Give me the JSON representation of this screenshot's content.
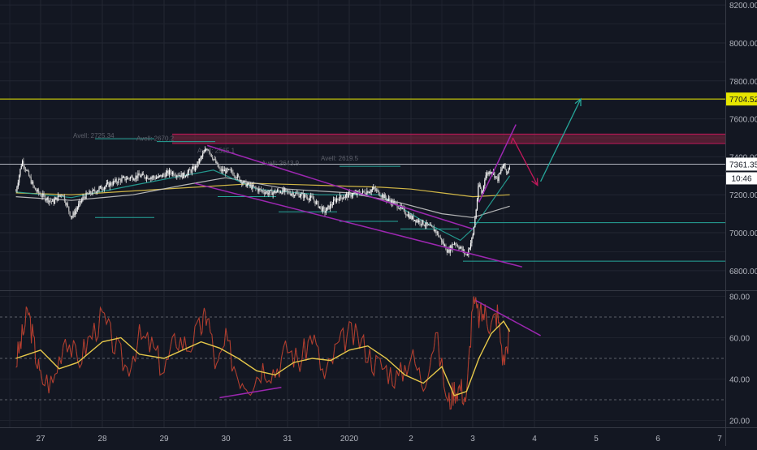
{
  "chart_data": [
    {
      "type": "candlestick",
      "title": "",
      "x_tick_labels": [
        "27",
        "28",
        "29",
        "30",
        "31",
        "2020",
        "2",
        "3",
        "4",
        "5",
        "6",
        "7"
      ],
      "y_tick_labels": [
        "6800.00",
        "7000.00",
        "7200.00",
        "7400.00",
        "7600.00",
        "7800.00",
        "8000.00",
        "8200.00"
      ],
      "ylim": [
        6660,
        8220
      ],
      "grid": true,
      "price_axis_labels": {
        "key_level": "7704.52",
        "last_price": "7361.35",
        "countdown": "10:46"
      },
      "price_path": {
        "x": [
          26.6,
          26.7,
          26.9,
          27.0,
          27.2,
          27.35,
          27.5,
          27.7,
          28.0,
          28.3,
          28.6,
          28.9,
          29.1,
          29.3,
          29.5,
          29.7,
          29.9,
          30.1,
          30.3,
          30.5,
          30.7,
          30.9,
          31.2,
          31.4,
          31.6,
          31.8,
          32.0,
          32.2,
          32.4,
          32.6,
          32.8,
          33.0,
          33.2,
          33.4,
          33.6,
          33.7,
          33.8,
          33.9,
          34.0,
          34.05,
          34.1,
          34.15,
          34.2,
          34.3,
          34.4,
          34.5,
          34.55,
          34.6
        ],
        "close": [
          7220,
          7380,
          7230,
          7200,
          7160,
          7210,
          7080,
          7190,
          7240,
          7280,
          7300,
          7290,
          7320,
          7300,
          7340,
          7450,
          7330,
          7320,
          7260,
          7230,
          7210,
          7220,
          7200,
          7180,
          7110,
          7180,
          7200,
          7210,
          7230,
          7180,
          7140,
          7080,
          7050,
          7010,
          6900,
          6950,
          6920,
          6880,
          6980,
          7110,
          7260,
          7200,
          7300,
          7330,
          7280,
          7360,
          7310,
          7361
        ]
      },
      "moving_averages": [
        {
          "color": "#e6c84a",
          "x": [
            26.6,
            27.5,
            28.5,
            29.5,
            30.5,
            31.5,
            32.5,
            33.0,
            33.5,
            34.0,
            34.6
          ],
          "values": [
            7210,
            7200,
            7220,
            7240,
            7260,
            7250,
            7240,
            7230,
            7210,
            7190,
            7200
          ]
        },
        {
          "color": "#c8c8c8",
          "x": [
            26.6,
            27.5,
            28.5,
            29.3,
            30.0,
            31.0,
            32.0,
            32.8,
            33.5,
            34.0,
            34.6
          ],
          "values": [
            7190,
            7170,
            7200,
            7250,
            7290,
            7230,
            7210,
            7160,
            7100,
            7080,
            7140
          ]
        },
        {
          "color": "#26a69a",
          "x": [
            26.6,
            27.5,
            28.5,
            29.3,
            29.8,
            30.5,
            31.5,
            32.5,
            33.2,
            33.8,
            34.0,
            34.6
          ],
          "values": [
            7215,
            7185,
            7250,
            7300,
            7330,
            7230,
            7200,
            7200,
            7060,
            6960,
            7020,
            7300
          ]
        }
      ],
      "horizontal_levels": [
        {
          "price": 7704.52,
          "color": "#e6e600"
        },
        {
          "price": 7361.35,
          "color": "#b2b5be"
        },
        {
          "price": 7053,
          "color": "#26a69a"
        },
        {
          "price": 6850,
          "color": "#26a69a"
        }
      ],
      "shaded_zone": {
        "from": 7470,
        "to": 7520,
        "color": "#9b2747"
      },
      "annotation_labels": [
        "Avell: 2725.34",
        "Avell: 2670.2",
        "Avell: 2619.5",
        "Avell: 2643.9",
        "Avell: 2565.1"
      ],
      "drawings": [
        {
          "kind": "trendline",
          "color": "#9c27b0",
          "from": [
            29.7,
            7460
          ],
          "to": [
            34.0,
            7020
          ]
        },
        {
          "kind": "trendline",
          "color": "#9c27b0",
          "from": [
            29.5,
            7260
          ],
          "to": [
            34.8,
            6820
          ]
        },
        {
          "kind": "trendline",
          "color": "#9c27b0",
          "from": [
            34.1,
            7160
          ],
          "to": [
            34.7,
            7570
          ]
        },
        {
          "kind": "arrow",
          "color": "#c2185b",
          "from": [
            34.65,
            7500
          ],
          "to": [
            35.05,
            7250
          ]
        },
        {
          "kind": "arrow",
          "color": "#26a69a",
          "from": [
            35.1,
            7270
          ],
          "to": [
            35.75,
            7705
          ]
        }
      ]
    },
    {
      "type": "line",
      "title": "",
      "y_tick_labels": [
        "20.00",
        "40.00",
        "60.00",
        "80.00"
      ],
      "ylim": [
        18,
        82
      ],
      "reference_levels": [
        30,
        50,
        70
      ],
      "series": [
        {
          "color": "#d32f2f",
          "x": [
            26.6,
            26.7,
            26.8,
            26.9,
            27.0,
            27.2,
            27.4,
            27.6,
            27.8,
            28.0,
            28.2,
            28.4,
            28.6,
            28.8,
            29.0,
            29.2,
            29.4,
            29.6,
            29.7,
            29.85,
            30.0,
            30.2,
            30.4,
            30.6,
            30.8,
            31.0,
            31.2,
            31.4,
            31.6,
            31.8,
            32.0,
            32.2,
            32.4,
            32.6,
            32.8,
            33.0,
            33.2,
            33.4,
            33.6,
            33.7,
            33.8,
            33.9,
            34.0,
            34.1,
            34.2,
            34.3,
            34.4,
            34.5,
            34.6
          ],
          "values": [
            48,
            60,
            73,
            55,
            40,
            38,
            62,
            48,
            60,
            70,
            56,
            45,
            60,
            56,
            44,
            60,
            56,
            65,
            72,
            44,
            58,
            42,
            38,
            46,
            44,
            55,
            48,
            62,
            40,
            55,
            62,
            58,
            48,
            45,
            40,
            52,
            38,
            62,
            28,
            35,
            36,
            30,
            78,
            70,
            72,
            66,
            72,
            48,
            64
          ]
        },
        {
          "color": "#e6c84a",
          "x": [
            26.6,
            26.8,
            27.0,
            27.3,
            27.6,
            28.0,
            28.3,
            28.6,
            29.0,
            29.3,
            29.6,
            29.9,
            30.2,
            30.5,
            30.8,
            31.1,
            31.4,
            31.7,
            32.0,
            32.3,
            32.6,
            32.9,
            33.2,
            33.5,
            33.7,
            33.9,
            34.1,
            34.3,
            34.5,
            34.6
          ],
          "values": [
            50,
            52,
            54,
            45,
            48,
            58,
            60,
            52,
            50,
            54,
            58,
            55,
            50,
            44,
            42,
            48,
            50,
            49,
            54,
            56,
            50,
            42,
            38,
            46,
            32,
            34,
            50,
            62,
            68,
            63
          ]
        }
      ],
      "drawings": [
        {
          "kind": "trendline",
          "color": "#9c27b0",
          "from": [
            34.05,
            78
          ],
          "to": [
            35.1,
            61
          ]
        },
        {
          "kind": "trendline",
          "color": "#9c27b0",
          "from": [
            29.9,
            31
          ],
          "to": [
            30.9,
            36
          ]
        }
      ]
    }
  ]
}
